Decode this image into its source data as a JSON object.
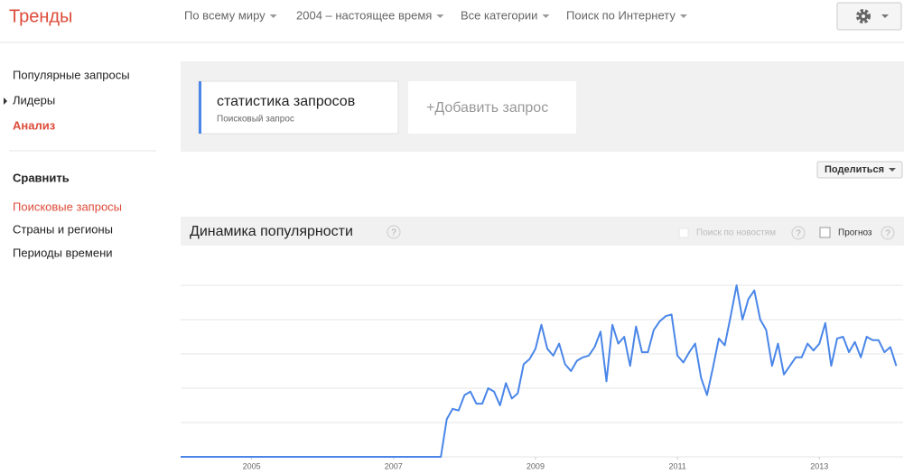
{
  "header": {
    "logo": "Тренды",
    "filters": [
      "По всему миру",
      "2004 – настоящее время",
      "Все категории",
      "Поиск по Интернету"
    ]
  },
  "sidebar": {
    "explore": [
      "Популярные запросы",
      "Лидеры",
      "Анализ"
    ],
    "compare_title": "Сравнить",
    "compare": [
      "Поисковые запросы",
      "Страны и регионы",
      "Периоды времени"
    ]
  },
  "terms": {
    "term": "статистика запросов",
    "term_type": "Поисковый запрос",
    "add": "+Добавить запрос"
  },
  "share": "Поделиться",
  "panel": {
    "title": "Динамика популярности",
    "help": "?",
    "news": "Поиск по новостям",
    "forecast": "Прогноз"
  },
  "chart_data": {
    "type": "line",
    "color": "#4a86e8",
    "grid": true,
    "xlim": [
      0,
      122
    ],
    "ylim": [
      0,
      100
    ],
    "yticks": [
      0,
      20,
      40,
      60,
      80,
      100
    ],
    "xticks": [
      {
        "value": 12,
        "label": "2005"
      },
      {
        "value": 36,
        "label": "2007"
      },
      {
        "value": 60,
        "label": "2009"
      },
      {
        "value": 84,
        "label": "2011"
      },
      {
        "value": 108,
        "label": "2013"
      }
    ],
    "values": [
      0,
      0,
      0,
      0,
      0,
      0,
      0,
      0,
      0,
      0,
      0,
      0,
      0,
      0,
      0,
      0,
      0,
      0,
      0,
      0,
      0,
      0,
      0,
      0,
      0,
      0,
      0,
      0,
      0,
      0,
      0,
      0,
      0,
      0,
      0,
      0,
      0,
      0,
      0,
      0,
      0,
      0,
      0,
      0,
      0,
      22,
      28,
      27,
      36,
      38,
      31,
      31,
      40,
      38,
      30,
      43,
      34,
      37,
      54,
      57,
      63,
      77,
      63,
      59,
      66,
      54,
      50,
      56,
      58,
      59,
      64,
      73,
      44,
      77,
      66,
      70,
      53,
      76,
      61,
      61,
      74,
      79,
      82,
      83,
      59,
      55,
      61,
      66,
      46,
      36,
      52,
      69,
      65,
      82,
      100,
      80,
      92,
      97,
      80,
      74,
      53,
      66,
      48,
      53,
      58,
      58,
      66,
      62,
      66,
      78,
      53,
      69,
      70,
      61,
      67,
      58,
      70,
      68,
      68,
      61,
      64,
      53
    ]
  }
}
